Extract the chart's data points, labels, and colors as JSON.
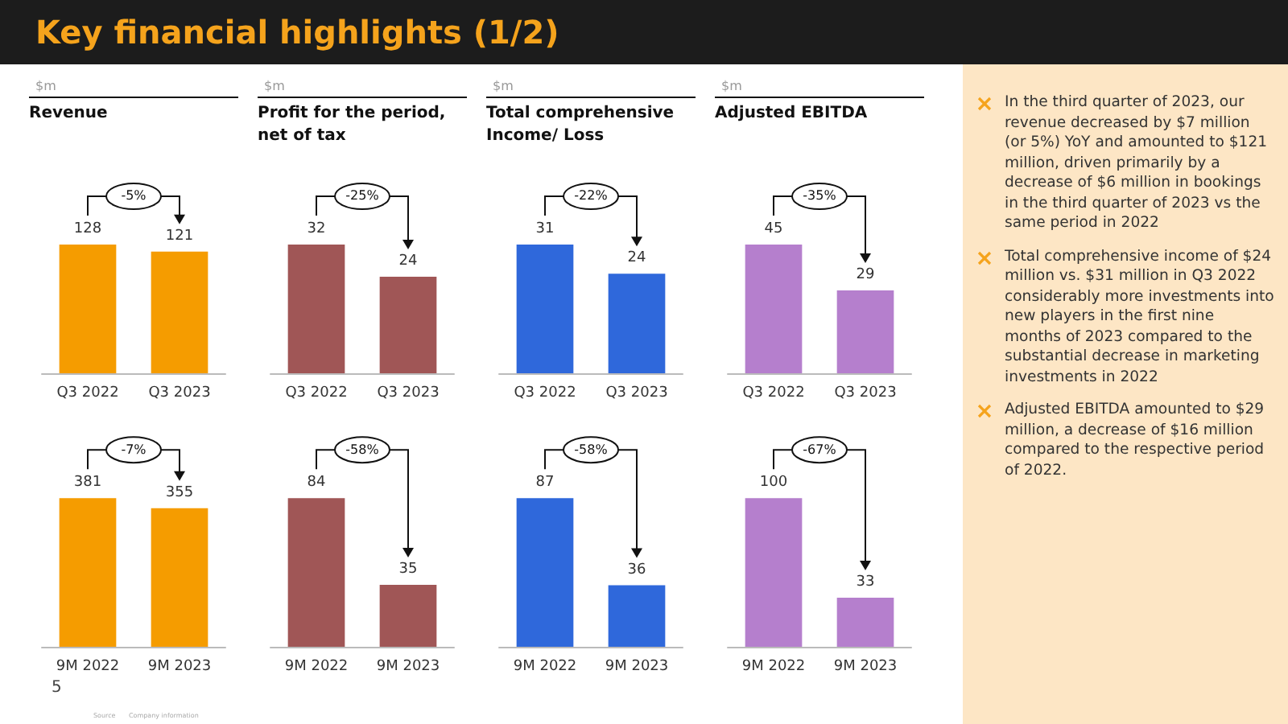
{
  "chart_data": [
    {
      "type": "bar",
      "subtitle": "$m",
      "title": "Revenue",
      "categories": [
        "Q3 2022",
        "Q3 2023"
      ],
      "values": [
        128,
        121
      ],
      "color": "#f59c00",
      "data_labels": true,
      "annotations": [
        "-5%"
      ]
    },
    {
      "type": "bar",
      "subtitle": "$m",
      "title": "Profit for the period, net of tax",
      "categories": [
        "Q3 2022",
        "Q3 2023"
      ],
      "values": [
        32,
        24
      ],
      "color": "#a05656",
      "data_labels": true,
      "annotations": [
        "-25%"
      ]
    },
    {
      "type": "bar",
      "subtitle": "$m",
      "title": "Total comprehensive Income/ Loss",
      "categories": [
        "Q3 2022",
        "Q3 2023"
      ],
      "values": [
        31,
        24
      ],
      "color": "#2f68db",
      "data_labels": true,
      "annotations": [
        "-22%"
      ]
    },
    {
      "type": "bar",
      "subtitle": "$m",
      "title": "Adjusted EBITDA",
      "categories": [
        "Q3 2022",
        "Q3 2023"
      ],
      "values": [
        45,
        29
      ],
      "color": "#b57fcd",
      "data_labels": true,
      "annotations": [
        "-35%"
      ]
    },
    {
      "type": "bar",
      "categories": [
        "9M 2022",
        "9M 2023"
      ],
      "values": [
        381,
        355
      ],
      "color": "#f59c00",
      "data_labels": true,
      "annotations": [
        "-7%"
      ]
    },
    {
      "type": "bar",
      "categories": [
        "9M 2022",
        "9M 2023"
      ],
      "values": [
        84,
        35
      ],
      "color": "#a05656",
      "data_labels": true,
      "annotations": [
        "-58%"
      ]
    },
    {
      "type": "bar",
      "categories": [
        "9M 2022",
        "9M 2023"
      ],
      "values": [
        87,
        36
      ],
      "color": "#2f68db",
      "data_labels": true,
      "annotations": [
        "-58%"
      ]
    },
    {
      "type": "bar",
      "categories": [
        "9M 2022",
        "9M 2023"
      ],
      "values": [
        100,
        33
      ],
      "color": "#b57fcd",
      "data_labels": true,
      "annotations": [
        "-67%"
      ]
    },
    {
      "type": "other",
      "title": "Key financial highlights (1/2)",
      "annotations": [
        "In the third quarter of 2023, our revenue decreased by $7 million (or 5%) YoY and amounted to $121 million, driven primarily by a decrease of $6 million in bookings in the third quarter of 2023 vs the same period in 2022",
        "Total comprehensive income of $24 million vs. $31 million in Q3 2022 considerably more investments into new players in the first nine months of 2023 compared to the substantial decrease in marketing investments in 2022",
        "Adjusted EBITDA amounted to $29 million, a decrease of $16 million compared to the respective period of 2022.",
        "5",
        "Source",
        "Company information"
      ]
    }
  ]
}
